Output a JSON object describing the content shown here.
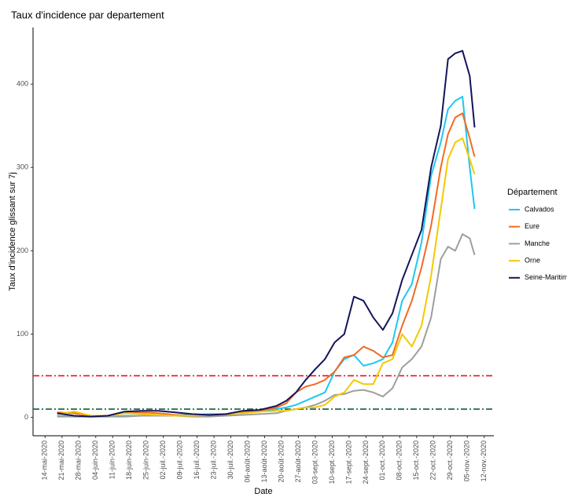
{
  "chart_data": {
    "type": "line",
    "title": "Taux d'incidence par departement",
    "x_label": "Date",
    "y_label": "Taux d'incidence glissant sur 7j",
    "legend_title": "Département",
    "legend": "right",
    "grid": false,
    "x": [
      "2020-05-19",
      "2020-05-26",
      "2020-06-02",
      "2020-06-09",
      "2020-06-16",
      "2020-06-23",
      "2020-06-30",
      "2020-07-07",
      "2020-07-14",
      "2020-07-21",
      "2020-07-28",
      "2020-08-04",
      "2020-08-11",
      "2020-08-18",
      "2020-08-22",
      "2020-08-26",
      "2020-08-30",
      "2020-09-03",
      "2020-09-07",
      "2020-09-11",
      "2020-09-15",
      "2020-09-19",
      "2020-09-23",
      "2020-09-27",
      "2020-10-01",
      "2020-10-05",
      "2020-10-09",
      "2020-10-13",
      "2020-10-17",
      "2020-10-21",
      "2020-10-25",
      "2020-10-28",
      "2020-10-31",
      "2020-11-03",
      "2020-11-06",
      "2020-11-08"
    ],
    "series": [
      {
        "name": "Calvados",
        "color": "#1ec8f0",
        "values": [
          2,
          1,
          1,
          1,
          2,
          2,
          2,
          3,
          3,
          4,
          4,
          5,
          7,
          10,
          12,
          15,
          20,
          25,
          30,
          55,
          70,
          75,
          62,
          65,
          70,
          90,
          140,
          160,
          210,
          290,
          330,
          370,
          380,
          385,
          300,
          250
        ]
      },
      {
        "name": "Eure",
        "color": "#f26b21",
        "values": [
          6,
          5,
          2,
          2,
          6,
          6,
          5,
          3,
          2,
          2,
          3,
          6,
          8,
          12,
          17,
          30,
          37,
          40,
          45,
          55,
          72,
          75,
          85,
          80,
          72,
          75,
          110,
          140,
          180,
          230,
          300,
          340,
          360,
          365,
          335,
          313
        ]
      },
      {
        "name": "Manche",
        "color": "#9e9e9e",
        "values": [
          1,
          1,
          1,
          1,
          1,
          2,
          2,
          2,
          1,
          1,
          2,
          3,
          4,
          5,
          8,
          10,
          12,
          15,
          20,
          27,
          28,
          32,
          33,
          30,
          25,
          35,
          60,
          70,
          85,
          120,
          190,
          205,
          200,
          220,
          215,
          195
        ]
      },
      {
        "name": "Orne",
        "color": "#f5c800",
        "values": [
          4,
          7,
          2,
          2,
          5,
          4,
          3,
          2,
          2,
          3,
          4,
          5,
          7,
          8,
          8,
          10,
          12,
          12,
          15,
          25,
          30,
          45,
          40,
          40,
          65,
          70,
          100,
          85,
          110,
          170,
          250,
          310,
          330,
          335,
          310,
          292
        ]
      },
      {
        "name": "Seine-Maritime",
        "color": "#14145a",
        "values": [
          5,
          2,
          1,
          2,
          7,
          8,
          8,
          6,
          4,
          3,
          4,
          8,
          9,
          14,
          20,
          30,
          45,
          58,
          70,
          90,
          100,
          145,
          140,
          120,
          105,
          125,
          165,
          195,
          225,
          300,
          350,
          430,
          437,
          440,
          410,
          348
        ]
      }
    ],
    "hlines": [
      {
        "value": 50,
        "color": "#e8141c"
      },
      {
        "value": 10,
        "color": "#0b5e3d"
      }
    ],
    "xlim": [
      "2020-05-09",
      "2020-11-16"
    ],
    "ylim": [
      -22,
      468
    ],
    "yticks": [
      0,
      100,
      200,
      300,
      400
    ],
    "xticks": [
      {
        "value": "2020-05-14",
        "label": "14-mai-2020"
      },
      {
        "value": "2020-05-21",
        "label": "21-mai-2020"
      },
      {
        "value": "2020-05-28",
        "label": "28-mai-2020"
      },
      {
        "value": "2020-06-04",
        "label": "04-juin-2020"
      },
      {
        "value": "2020-06-11",
        "label": "11-juin-2020"
      },
      {
        "value": "2020-06-18",
        "label": "18-juin-2020"
      },
      {
        "value": "2020-06-25",
        "label": "25-juin-2020"
      },
      {
        "value": "2020-07-02",
        "label": "02-juil.-2020"
      },
      {
        "value": "2020-07-09",
        "label": "09-juil.-2020"
      },
      {
        "value": "2020-07-16",
        "label": "16-juil.-2020"
      },
      {
        "value": "2020-07-23",
        "label": "23-juil.-2020"
      },
      {
        "value": "2020-07-30",
        "label": "30-juil.-2020"
      },
      {
        "value": "2020-08-06",
        "label": "06-août-2020"
      },
      {
        "value": "2020-08-13",
        "label": "13-août-2020"
      },
      {
        "value": "2020-08-20",
        "label": "20-août-2020"
      },
      {
        "value": "2020-08-27",
        "label": "27-août-2020"
      },
      {
        "value": "2020-09-03",
        "label": "03-sept.-2020"
      },
      {
        "value": "2020-09-10",
        "label": "10-sept.-2020"
      },
      {
        "value": "2020-09-17",
        "label": "17-sept.-2020"
      },
      {
        "value": "2020-09-24",
        "label": "24-sept.-2020"
      },
      {
        "value": "2020-10-01",
        "label": "01-oct.-2020"
      },
      {
        "value": "2020-10-08",
        "label": "08-oct.-2020"
      },
      {
        "value": "2020-10-15",
        "label": "15-oct.-2020"
      },
      {
        "value": "2020-10-22",
        "label": "22-oct.-2020"
      },
      {
        "value": "2020-10-29",
        "label": "29-oct.-2020"
      },
      {
        "value": "2020-11-05",
        "label": "05-nov.-2020"
      },
      {
        "value": "2020-11-12",
        "label": "12-nov.-2020"
      }
    ]
  }
}
